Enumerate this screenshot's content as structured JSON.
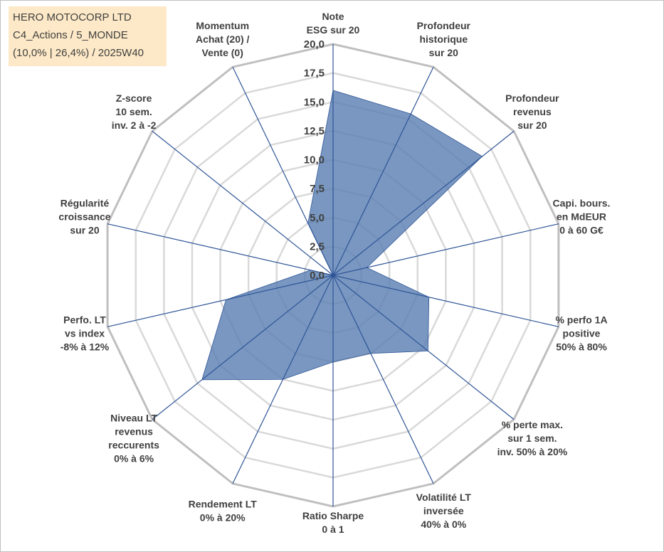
{
  "info_box": {
    "company": "HERO MOTOCORP LTD",
    "category": "C4_Actions / 5_MONDE",
    "stats": "(10,0% | 26,4%) / 2025W40"
  },
  "chart_data": {
    "type": "radar",
    "range": [
      0,
      20
    ],
    "tick_values": [
      0,
      2.5,
      5,
      7.5,
      10,
      12.5,
      15,
      17.5,
      20
    ],
    "tick_labels": [
      "0,0",
      "2,5",
      "5,0",
      "7,5",
      "10,0",
      "12,5",
      "15,0",
      "17,5",
      "20,0"
    ],
    "axes": [
      {
        "label": [
          "Note",
          "ESG sur 20"
        ],
        "value": 16
      },
      {
        "label": [
          "Profondeur",
          "historique",
          "sur 20"
        ],
        "value": 15.5
      },
      {
        "label": [
          "Profondeur",
          "revenus",
          "sur 20"
        ],
        "value": 16.5
      },
      {
        "label": [
          "Capi. bours.",
          "en MdEUR",
          "0 à 60 G€"
        ],
        "value": 3
      },
      {
        "label": [
          "% perfo 1A",
          "positive",
          "50% à 80%"
        ],
        "value": 8.5
      },
      {
        "label": [
          "% perte max.",
          "sur 1 sem.",
          "inv. 50% à 20%"
        ],
        "value": 10.5
      },
      {
        "label": [
          "Volatilité LT",
          "inversée",
          "40% à 0%"
        ],
        "value": 7.5
      },
      {
        "label": [
          "Ratio Sharpe",
          "0 à 1"
        ],
        "value": 7.5
      },
      {
        "label": [
          "Rendement LT",
          "0% à 20%"
        ],
        "value": 10
      },
      {
        "label": [
          "Niveau LT",
          "revenus",
          "reccurents",
          "0% à 6%"
        ],
        "value": 14.5
      },
      {
        "label": [
          "Perfo. LT",
          "vs index",
          "-8% à 12%"
        ],
        "value": 9.5
      },
      {
        "label": [
          "Régularité",
          "croissance",
          "sur 20"
        ],
        "value": 2
      },
      {
        "label": [
          "Z-score",
          "10 sem.",
          "inv. 2 à -2"
        ],
        "value": 0
      },
      {
        "label": [
          "Momentum",
          "Achat (20) /",
          "Vente (0)"
        ],
        "value": 5
      }
    ],
    "colors": {
      "fill": "#5b80b2",
      "spoke": "#2f5597",
      "grid": "#d9d9d9",
      "outer_grid": "#bfbfbf"
    },
    "grid": true,
    "legend": "none"
  }
}
